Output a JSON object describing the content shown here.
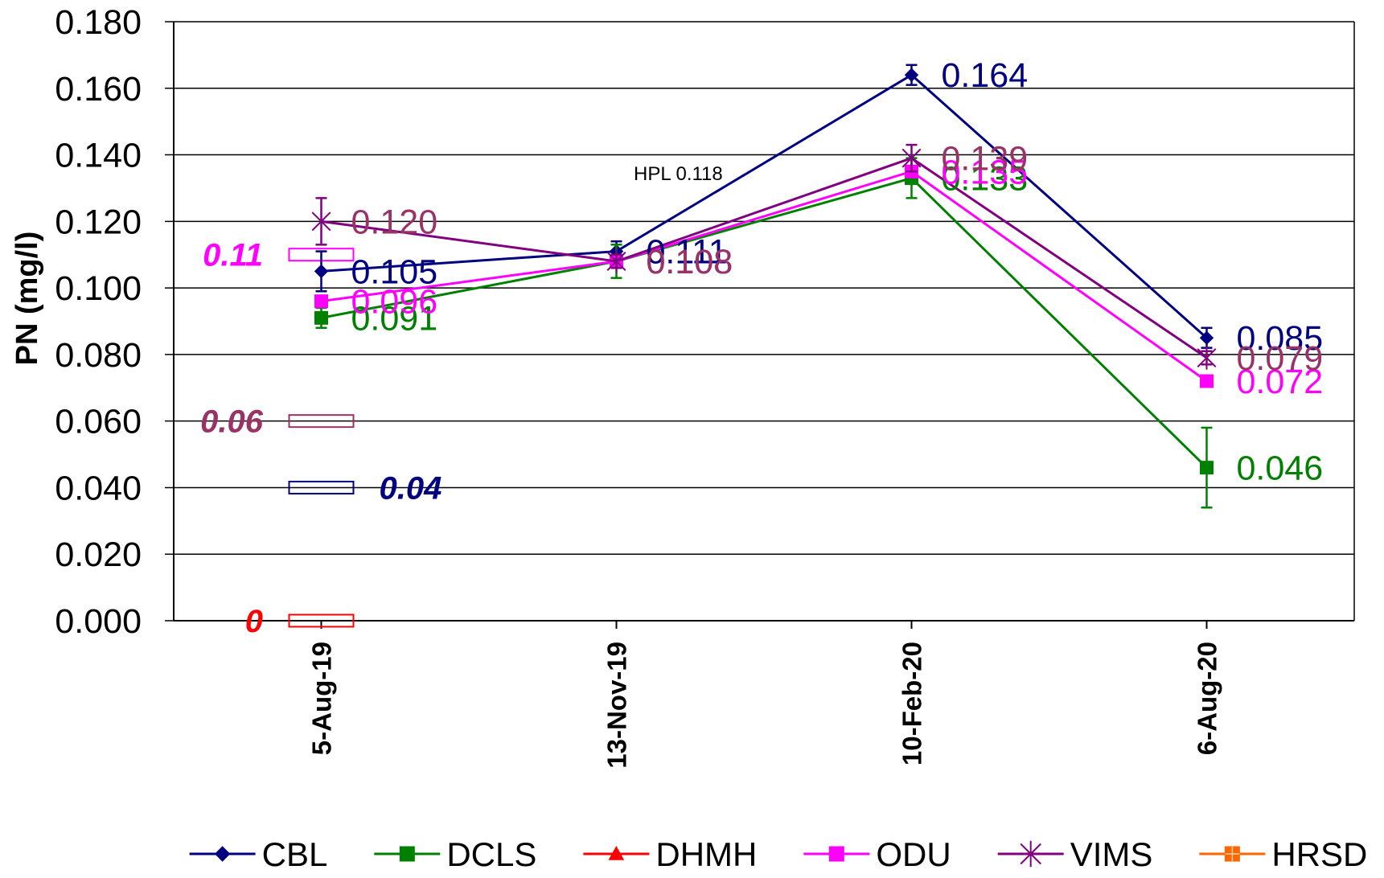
{
  "chart_data": {
    "type": "line",
    "categories": [
      "5-Aug-19",
      "13-Nov-19",
      "10-Feb-20",
      "6-Aug-20"
    ],
    "ylabel": "PN (mg/l)",
    "ylim": [
      0,
      0.18
    ],
    "yticks": [
      "0.000",
      "0.020",
      "0.040",
      "0.060",
      "0.080",
      "0.100",
      "0.120",
      "0.140",
      "0.160",
      "0.180"
    ],
    "grid": true,
    "legend_position": "bottom",
    "series": [
      {
        "name": "CBL",
        "color": "#000080",
        "marker": "diamond",
        "values": [
          0.105,
          0.111,
          0.164,
          0.085
        ],
        "errors": [
          0.006,
          0.003,
          0.003,
          0.003
        ],
        "labels": [
          "0.105",
          "0.111",
          "0.164",
          "0.085"
        ]
      },
      {
        "name": "DCLS",
        "color": "#008000",
        "marker": "square",
        "values": [
          0.091,
          0.108,
          0.133,
          0.046
        ],
        "errors": [
          0.003,
          0.005,
          0.006,
          0.012
        ],
        "labels": [
          "0.091",
          "0.108",
          "0.133",
          "0.046"
        ]
      },
      {
        "name": "DHMH",
        "color": "#FF0000",
        "marker": "triangle",
        "values": [
          null,
          null,
          null,
          null
        ]
      },
      {
        "name": "ODU",
        "color": "#FF00FF",
        "marker": "square",
        "values": [
          0.096,
          0.108,
          0.135,
          0.072
        ],
        "labels": [
          "0.096",
          "0.108",
          "0.135",
          "0.072"
        ]
      },
      {
        "name": "VIMS",
        "color": "#800080",
        "label_color": "#993366",
        "marker": "asterisk",
        "values": [
          0.12,
          0.108,
          0.139,
          0.079
        ],
        "errors": [
          0.007,
          0.002,
          0.004,
          0.002
        ],
        "labels": [
          "0.120",
          "0.108",
          "0.139",
          "0.079"
        ]
      },
      {
        "name": "HRSD",
        "color": "#FF6600",
        "marker": "square-patterned",
        "values": [
          null,
          null,
          null,
          null
        ]
      }
    ],
    "reference_markers": [
      {
        "label": "0.11",
        "value": 0.11,
        "color": "#FF00FF"
      },
      {
        "label": "0.06",
        "value": 0.06,
        "color": "#993366"
      },
      {
        "label": "0.04",
        "value": 0.04,
        "color": "#000080"
      },
      {
        "label": "0",
        "value": 0,
        "color": "#FF0000"
      }
    ],
    "annotations": [
      {
        "text": "HPL 0.118"
      }
    ]
  }
}
